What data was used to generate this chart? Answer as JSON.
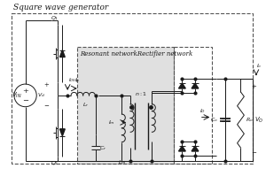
{
  "bg_color": "#ffffff",
  "line_color": "#1a1a1a",
  "gray_fill": "#e0e0e0",
  "figsize": [
    3.0,
    1.99
  ],
  "dpi": 100,
  "title": "Square wave generator",
  "subtitle": "Resonant networkRectifier network"
}
